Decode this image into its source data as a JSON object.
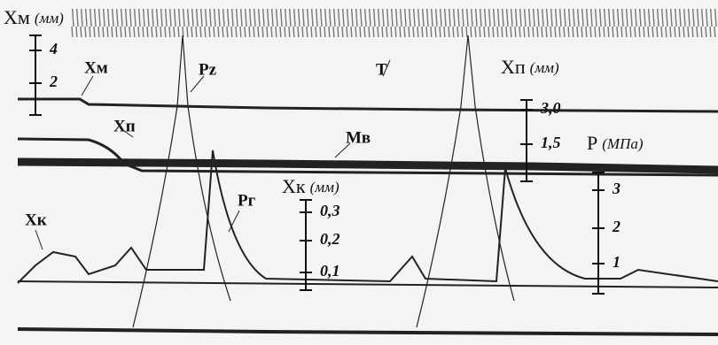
{
  "scales": [
    {
      "name": "Xм",
      "unit": "(мм)",
      "ticks": [
        "4",
        "2"
      ]
    },
    {
      "name": "Xп",
      "unit": "(мм)",
      "ticks": [
        "3,0",
        "1,5"
      ]
    },
    {
      "name": "P",
      "unit": "(МПа)",
      "ticks": [
        "3",
        "2",
        "1"
      ]
    },
    {
      "name": "Xк",
      "unit": "(мм)",
      "ticks": [
        "0,3",
        "0,2",
        "0,1"
      ]
    }
  ],
  "trace_labels": [
    "Xм",
    "Pz",
    "T",
    "Xп",
    "Мв",
    "Pг",
    "Xк"
  ]
}
